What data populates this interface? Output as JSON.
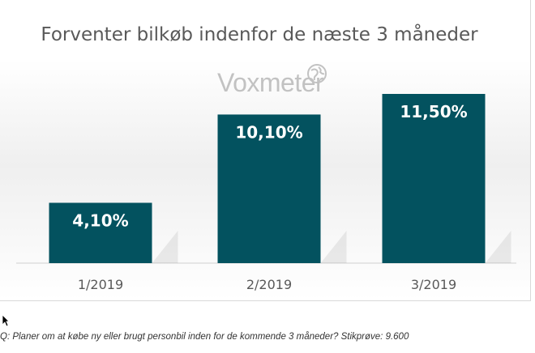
{
  "chart_data": {
    "type": "bar",
    "title": "Forventer bilkøb indenfor de næste 3 måneder",
    "categories": [
      "1/2019",
      "2/2019",
      "3/2019"
    ],
    "values": [
      4.1,
      10.1,
      11.5
    ],
    "value_labels": [
      "4,10%",
      "10,10%",
      "11,50%"
    ],
    "ylim": [
      0,
      12.5
    ],
    "bar_color": "#03525f",
    "grid": false,
    "legend": "none"
  },
  "watermark": {
    "text": "Voxmeter",
    "icon": "globe-icon"
  },
  "footnote": "Q: Planer om at købe ny eller brugt personbil inden for de kommende 3 måneder? Stikprøve: 9.600"
}
